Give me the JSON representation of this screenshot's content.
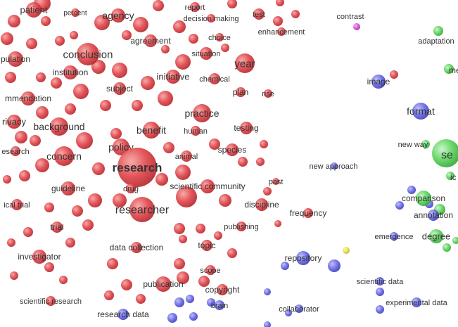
{
  "clusters": {
    "red": "#e0474c",
    "blue": "#6a6ae8",
    "green": "#5ed35e",
    "magenta": "#d94fd9",
    "yellow": "#e8e04a"
  },
  "terms": [
    {
      "label": "patient",
      "cluster": "red"
    },
    {
      "label": "percent",
      "cluster": "red"
    },
    {
      "label": "agency",
      "cluster": "red"
    },
    {
      "label": "report",
      "cluster": "red"
    },
    {
      "label": "decision making",
      "cluster": "red"
    },
    {
      "label": "test",
      "cluster": "red"
    },
    {
      "label": "contrast",
      "cluster": "magenta"
    },
    {
      "label": "pulation",
      "cluster": "red"
    },
    {
      "label": "conclusion",
      "cluster": "red"
    },
    {
      "label": "agreement",
      "cluster": "red"
    },
    {
      "label": "choice",
      "cluster": "red"
    },
    {
      "label": "enhancement",
      "cluster": "red"
    },
    {
      "label": "adaptation",
      "cluster": "green"
    },
    {
      "label": "institution",
      "cluster": "red"
    },
    {
      "label": "situation",
      "cluster": "red"
    },
    {
      "label": "year",
      "cluster": "red"
    },
    {
      "label": "me",
      "cluster": "green"
    },
    {
      "label": "initiative",
      "cluster": "red"
    },
    {
      "label": "chemical",
      "cluster": "red"
    },
    {
      "label": "image",
      "cluster": "blue"
    },
    {
      "label": "mmendation",
      "cluster": "red"
    },
    {
      "label": "subject",
      "cluster": "red"
    },
    {
      "label": "plan",
      "cluster": "red"
    },
    {
      "label": "rise",
      "cluster": "red"
    },
    {
      "label": "practice",
      "cluster": "red"
    },
    {
      "label": "format",
      "cluster": "blue"
    },
    {
      "label": "rivacy",
      "cluster": "red"
    },
    {
      "label": "background",
      "cluster": "red"
    },
    {
      "label": "human",
      "cluster": "red"
    },
    {
      "label": "testing",
      "cluster": "red"
    },
    {
      "label": "benefit",
      "cluster": "red"
    },
    {
      "label": "new way",
      "cluster": "green"
    },
    {
      "label": "se",
      "cluster": "green"
    },
    {
      "label": "policy",
      "cluster": "red"
    },
    {
      "label": "species",
      "cluster": "red"
    },
    {
      "label": "esearch",
      "cluster": "red"
    },
    {
      "label": "concern",
      "cluster": "red"
    },
    {
      "label": "animal",
      "cluster": "red"
    },
    {
      "label": "research",
      "cluster": "red"
    },
    {
      "label": "new approach",
      "cluster": "blue"
    },
    {
      "label": "ic",
      "cluster": "green"
    },
    {
      "label": "past",
      "cluster": "red"
    },
    {
      "label": "guideline",
      "cluster": "red"
    },
    {
      "label": "drug",
      "cluster": "red"
    },
    {
      "label": "scientific community",
      "cluster": "red"
    },
    {
      "label": "comparison",
      "cluster": "green"
    },
    {
      "label": "ical trial",
      "cluster": "red"
    },
    {
      "label": "researcher",
      "cluster": "red"
    },
    {
      "label": "discipline",
      "cluster": "red"
    },
    {
      "label": "frequency",
      "cluster": "red"
    },
    {
      "label": "annotation",
      "cluster": "blue"
    },
    {
      "label": "trial",
      "cluster": "red"
    },
    {
      "label": "publishing",
      "cluster": "red"
    },
    {
      "label": "emergence",
      "cluster": "green"
    },
    {
      "label": "degree",
      "cluster": "green"
    },
    {
      "label": "topic",
      "cluster": "red"
    },
    {
      "label": "data collection",
      "cluster": "red"
    },
    {
      "label": "investigator",
      "cluster": "red"
    },
    {
      "label": "repository",
      "cluster": "blue"
    },
    {
      "label": "scope",
      "cluster": "red"
    },
    {
      "label": "scientific data",
      "cluster": "blue"
    },
    {
      "label": "publication",
      "cluster": "red"
    },
    {
      "label": "copyright",
      "cluster": "red"
    },
    {
      "label": "scientific research",
      "cluster": "red"
    },
    {
      "label": "experimental data",
      "cluster": "blue"
    },
    {
      "label": "brain",
      "cluster": "blue"
    },
    {
      "label": "research data",
      "cluster": "blue"
    },
    {
      "label": "collaborator",
      "cluster": "blue"
    }
  ]
}
